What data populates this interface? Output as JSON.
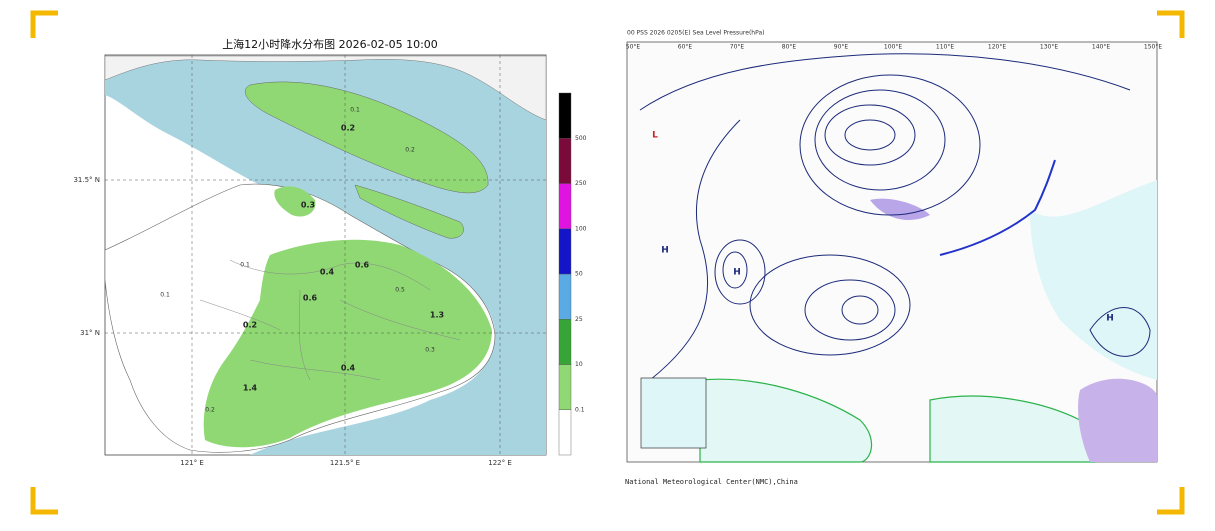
{
  "left_map": {
    "title": "上海12小时降水分布图 2026-02-05 10:00",
    "lat_labels": [
      "31.5° N",
      "31° N"
    ],
    "lon_labels": [
      "121° E",
      "121.5° E",
      "122° E"
    ],
    "colorbar_colors": [
      "#ffffff",
      "#8fd873",
      "#37a437",
      "#5aaae6",
      "#1414c8",
      "#e014e0",
      "#7a0a3a",
      "#000000"
    ],
    "colorbar_labels": [
      "0.1",
      "10",
      "25",
      "50",
      "100",
      "250",
      "500"
    ],
    "station_values": [
      "0.2",
      "0.3",
      "0.4",
      "0.6",
      "0.1",
      "0.2",
      "0.4",
      "1.3",
      "1.4",
      "0.1",
      "0.2",
      "0.5",
      "0.3",
      "0.1",
      "0.6",
      "0.2"
    ]
  },
  "right_map": {
    "header": "00 PSS 2026 0205(E) Sea Level Pressure(hPa)",
    "footer": "National Meteorological Center(NMC),China",
    "lon_labels": [
      "50°E",
      "60°E",
      "70°E",
      "80°E",
      "90°E",
      "100°E",
      "110°E",
      "120°E",
      "130°E",
      "140°E",
      "150°E"
    ],
    "pressure_centers": [
      "L",
      "H",
      "H",
      "H"
    ]
  }
}
